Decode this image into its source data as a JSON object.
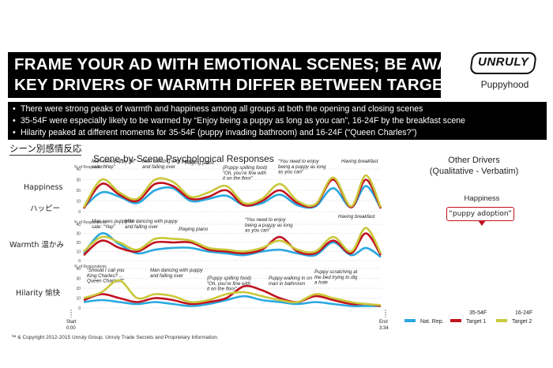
{
  "header": {
    "title_line1": "FRAME YOUR AD WITH EMOTIONAL SCENES; BE AWARE",
    "title_line2": "KEY DRIVERS OF WARMTH DIFFER BETWEEN TARGETS",
    "logo": "UNRULY",
    "logo_sub": "Puppyhood"
  },
  "bullets": [
    "There were strong peaks of warmth and happiness among all groups at both the opening and closing scenes",
    "35-54F were especially likely to be warmed by “Enjoy being a puppy as long as you can”, 16-24F  by the breakfast scene",
    "Hilarity peaked at different moments for 35-54F (puppy invading bathroom) and 16-24F (“Queen Charles?”)"
  ],
  "bullet_marker": "•",
  "jp_heading": "シーン別感情反応",
  "section_title": "Scene-by-Scene Psychological Responses",
  "other_drivers": {
    "title_line1": "Other Drivers",
    "title_line2": "(Qualitative - Verbatim)",
    "happiness_label": "Happiness",
    "callout": "“puppy adoption”"
  },
  "row_labels": {
    "happiness": "Happiness",
    "happiness_jp": "ハッピー",
    "warmth": "Warmth  温かみ",
    "hilarity": "Hilarity  愉快"
  },
  "x_axis": {
    "start_label": "Start",
    "start_time": "0:00",
    "end_label": "End",
    "end_time": "3:34"
  },
  "footer": "™ & Copyright 2012-2015 Unruly Group. Unruly Trade Secrets and Proprietary Information.",
  "chart_data": [
    {
      "type": "line",
      "title": "Happiness",
      "ylabel": "% of Respondents",
      "ylim": [
        0,
        40
      ],
      "yticks": [
        0,
        10,
        20,
        30,
        40
      ],
      "x": [
        0,
        0.06,
        0.12,
        0.18,
        0.24,
        0.3,
        0.36,
        0.42,
        0.48,
        0.54,
        0.6,
        0.66,
        0.72,
        0.78,
        0.84,
        0.9,
        0.95,
        1.0
      ],
      "series": [
        {
          "name": "Nat. Rep.",
          "values": [
            4,
            18,
            14,
            8,
            20,
            22,
            10,
            12,
            15,
            6,
            8,
            16,
            6,
            5,
            22,
            4,
            24,
            3
          ]
        },
        {
          "name": "Target 1",
          "values": [
            3,
            26,
            16,
            10,
            26,
            24,
            12,
            14,
            20,
            6,
            10,
            20,
            8,
            6,
            30,
            4,
            30,
            3
          ]
        },
        {
          "name": "Target 2",
          "values": [
            4,
            30,
            18,
            12,
            30,
            28,
            14,
            18,
            24,
            8,
            12,
            26,
            10,
            7,
            32,
            5,
            34,
            4
          ]
        }
      ],
      "annotations": [
        "Man sees puppy for sale: “Yep”",
        "Man dancing with puppy and falling over",
        "Playing piano",
        "(Puppy spilling food) “Oh, you’re fine with it on the floor”",
        "“You need to enjoy being a puppy as long as you can”",
        "Having breakfast"
      ]
    },
    {
      "type": "line",
      "title": "Warmth",
      "ylabel": "% of Respondents",
      "ylim": [
        0,
        40
      ],
      "yticks": [
        0,
        10,
        20,
        30,
        40
      ],
      "x": [
        0,
        0.06,
        0.12,
        0.18,
        0.24,
        0.3,
        0.36,
        0.42,
        0.48,
        0.54,
        0.6,
        0.66,
        0.72,
        0.78,
        0.84,
        0.9,
        0.95,
        1.0
      ],
      "series": [
        {
          "name": "Nat. Rep.",
          "values": [
            8,
            30,
            18,
            8,
            12,
            14,
            14,
            10,
            8,
            6,
            10,
            12,
            8,
            6,
            20,
            6,
            14,
            4
          ]
        },
        {
          "name": "Target 1",
          "values": [
            6,
            22,
            14,
            10,
            20,
            20,
            20,
            12,
            10,
            8,
            12,
            26,
            10,
            8,
            22,
            8,
            30,
            6
          ]
        },
        {
          "name": "Target 2",
          "values": [
            10,
            26,
            20,
            12,
            24,
            24,
            22,
            14,
            12,
            10,
            14,
            22,
            12,
            10,
            26,
            10,
            36,
            8
          ]
        }
      ],
      "annotations": [
        "Man sees puppy for sale: “Yep”",
        "Man dancing with puppy and falling over",
        "Playing piano",
        "“You need to enjoy being a puppy as long as you can”",
        "Having breakfast"
      ]
    },
    {
      "type": "line",
      "title": "Hilarity",
      "ylabel": "% of Respondents",
      "ylim": [
        0,
        40
      ],
      "yticks": [
        0,
        10,
        20,
        30,
        40
      ],
      "x": [
        0,
        0.06,
        0.12,
        0.18,
        0.24,
        0.3,
        0.36,
        0.42,
        0.48,
        0.54,
        0.6,
        0.66,
        0.72,
        0.78,
        0.84,
        0.9,
        0.95,
        1.0
      ],
      "series": [
        {
          "name": "Nat. Rep.",
          "values": [
            6,
            8,
            6,
            4,
            6,
            4,
            2,
            4,
            8,
            12,
            8,
            6,
            4,
            6,
            4,
            2,
            2,
            2
          ]
        },
        {
          "name": "Target 1",
          "values": [
            8,
            14,
            10,
            6,
            10,
            8,
            4,
            6,
            10,
            22,
            18,
            10,
            6,
            12,
            8,
            4,
            4,
            2
          ]
        },
        {
          "name": "Target 2",
          "values": [
            10,
            16,
            28,
            10,
            14,
            12,
            6,
            8,
            14,
            16,
            12,
            8,
            6,
            14,
            10,
            6,
            4,
            3
          ]
        }
      ],
      "annotations": [
        "“Should I call you King Charles? ... Queen Charles?”",
        "Man dancing with puppy and falling over",
        "(Puppy spilling food) “Oh, you’re fine with it on the floor”",
        "Puppy walking in on man in bathroom",
        "Puppy scratching at the bed trying to dig a hole"
      ]
    }
  ],
  "legend": {
    "group1": "35-54F",
    "group2": "16-24F",
    "items": [
      {
        "name": "Nat. Rep.",
        "color": "#29a8e0"
      },
      {
        "name": "Target 1",
        "color": "#c1121f"
      },
      {
        "name": "Target 2",
        "color": "#c9c83a"
      }
    ]
  },
  "colors": {
    "nat_rep": "#29a8e0",
    "target1": "#c1121f",
    "target2": "#c9c83a"
  }
}
